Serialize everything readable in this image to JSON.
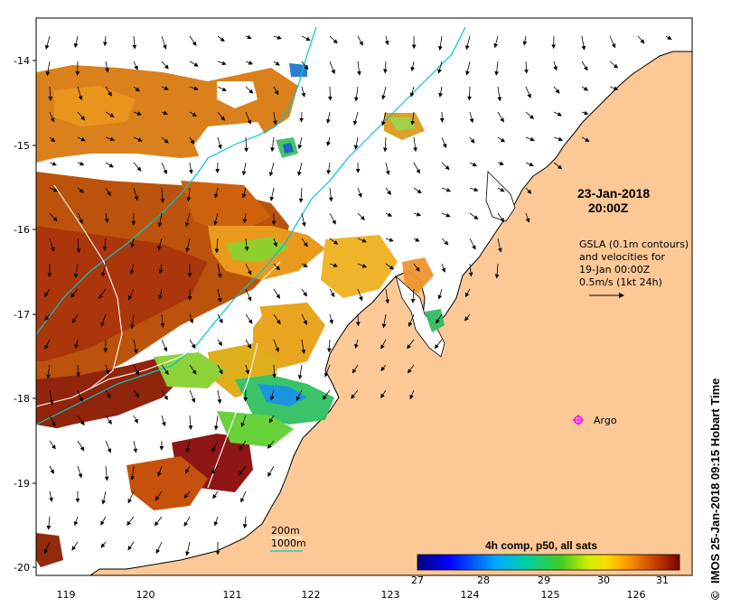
{
  "map": {
    "y_axis_ticks": [
      "-14",
      "-15",
      "-16",
      "-17",
      "-18",
      "-19",
      "-20"
    ],
    "x_axis_ticks": [
      "119",
      "120",
      "121",
      "122",
      "123",
      "124",
      "125",
      "126"
    ],
    "date_line1": "23-Jan-2018",
    "date_line2": "20:00Z",
    "gsla_lines": [
      "GSLA (0.1m contours)",
      "and velocities for",
      "19-Jan 00:00Z",
      "0.5m/s (1kt 24h)"
    ],
    "argo_label": "Argo",
    "depth_legend": [
      "200m",
      "1000m"
    ],
    "colorbar_title": "4h comp, p50, all sats",
    "colorbar_ticks": [
      "27",
      "28",
      "29",
      "30",
      "31"
    ],
    "credit": "IMOS 25-Jan-2018 09:15 Hobart Time",
    "credit_symbol": "©",
    "colors": {
      "land": "#fcc896",
      "sea": "#ffffff",
      "contour_200m": "#ffffff",
      "contour_1000m": "#00c8c8",
      "argo": "#ff00ff"
    }
  }
}
